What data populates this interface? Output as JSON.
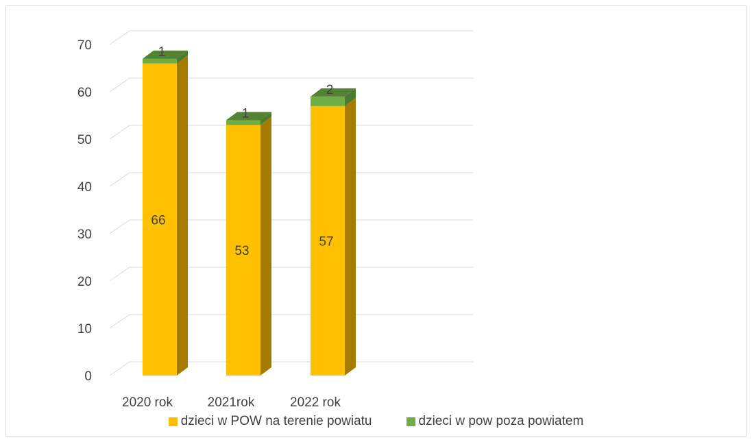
{
  "chart_data": {
    "type": "bar",
    "stacked": true,
    "three_d": true,
    "categories": [
      "2020 rok",
      "2021rok",
      "2022 rok"
    ],
    "series": [
      {
        "name": "dzieci w POW na terenie powiatu",
        "values": [
          66,
          53,
          57
        ],
        "color": "#FFC000",
        "side_color": "#A67C00",
        "top_color": "#D9A300"
      },
      {
        "name": "dzieci w pow poza powiatem",
        "values": [
          1,
          1,
          2
        ],
        "color": "#70AD47",
        "side_color": "#4C7A30",
        "top_color": "#548235"
      }
    ],
    "yticks": [
      0,
      10,
      20,
      30,
      40,
      50,
      60,
      70
    ],
    "ylim": [
      0,
      70
    ],
    "grid": true,
    "legend_position": "bottom"
  }
}
